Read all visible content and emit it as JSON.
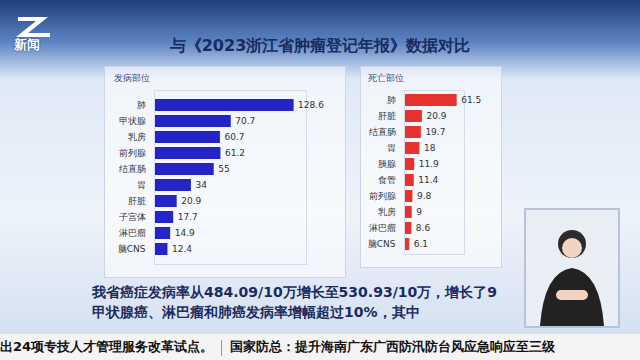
{
  "slide_title": "与《2023浙江省肿瘤登记年报》数据对比",
  "logo": "新闻",
  "text_lines": [
    "我省癌症发病率从484.09/10万增长至530.93/10万，增长了9",
    "甲状腺癌、淋巴瘤和肺癌发病率增幅超过10%，其中"
  ],
  "ticker": [
    "出24项专技人才管理服务改革试点。",
    "国家防总：提升海南广东广西防汛防台风应急响应至三级"
  ],
  "chart_data": [
    {
      "type": "bar",
      "title": "发病部位",
      "orientation": "horizontal",
      "categories": [
        "肺",
        "甲状腺",
        "乳房",
        "前列腺",
        "结直肠",
        "胃",
        "肝脏",
        "子宫体",
        "淋巴瘤",
        "脑CNS"
      ],
      "values": [
        128.6,
        70.7,
        60.7,
        61.2,
        55.0,
        34.0,
        20.9,
        17.7,
        14.9,
        12.4
      ],
      "color": "#2424c8",
      "xlim": [
        0,
        140
      ],
      "xticks": [],
      "data_labels": true,
      "tick_labels": "y"
    },
    {
      "type": "bar",
      "title": "死亡部位",
      "orientation": "horizontal",
      "categories": [
        "肺",
        "肝脏",
        "结直肠",
        "胃",
        "胰腺",
        "食管",
        "前列腺",
        "乳房",
        "淋巴瘤",
        "脑CNS"
      ],
      "values": [
        61.5,
        20.9,
        19.7,
        18.0,
        11.9,
        11.4,
        9.8,
        9.0,
        8.6,
        6.1
      ],
      "color": "#e8332c",
      "xlim": [
        0,
        70
      ],
      "xticks": [],
      "data_labels": true,
      "tick_labels": "y"
    }
  ]
}
